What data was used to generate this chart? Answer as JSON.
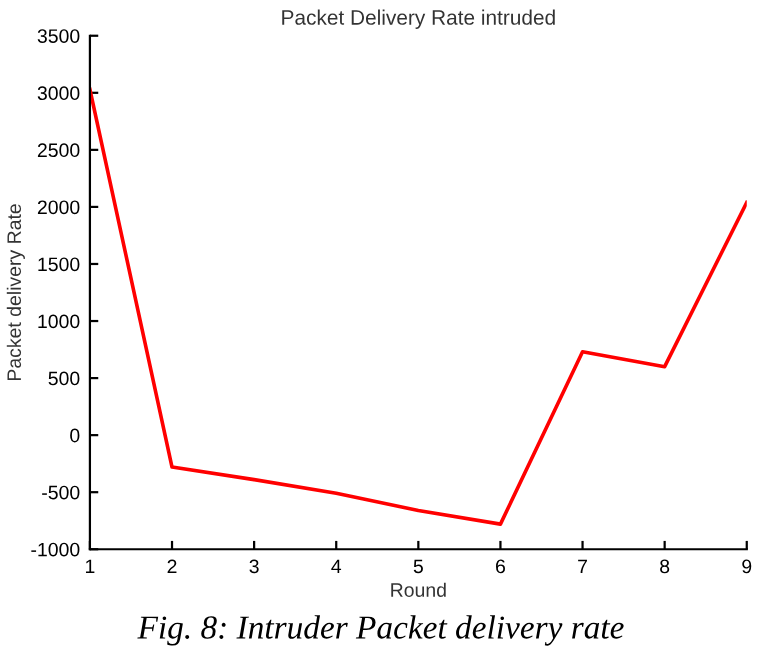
{
  "chart_data": {
    "type": "line",
    "title": "Packet Delivery Rate intruded",
    "xlabel": "Round",
    "ylabel": "Packet delivery Rate",
    "x": [
      1,
      2,
      3,
      4,
      5,
      6,
      7,
      8,
      9
    ],
    "series": [
      {
        "color": "#ff0000",
        "values": [
          3030,
          -280,
          -390,
          -510,
          -660,
          -780,
          730,
          600,
          2040
        ]
      }
    ],
    "xlim": [
      1,
      9
    ],
    "xticks": [
      1,
      2,
      3,
      4,
      5,
      6,
      7,
      8,
      9
    ],
    "ylim": [
      -1000,
      3500
    ],
    "yticks": [
      -1000,
      -500,
      0,
      500,
      1000,
      1500,
      2000,
      2500,
      3000,
      3500
    ],
    "grid": false,
    "legend": false,
    "marker": "none",
    "line_style": "solid",
    "annotations": [
      "Fig. 8: Intruder Packet delivery rate"
    ]
  }
}
